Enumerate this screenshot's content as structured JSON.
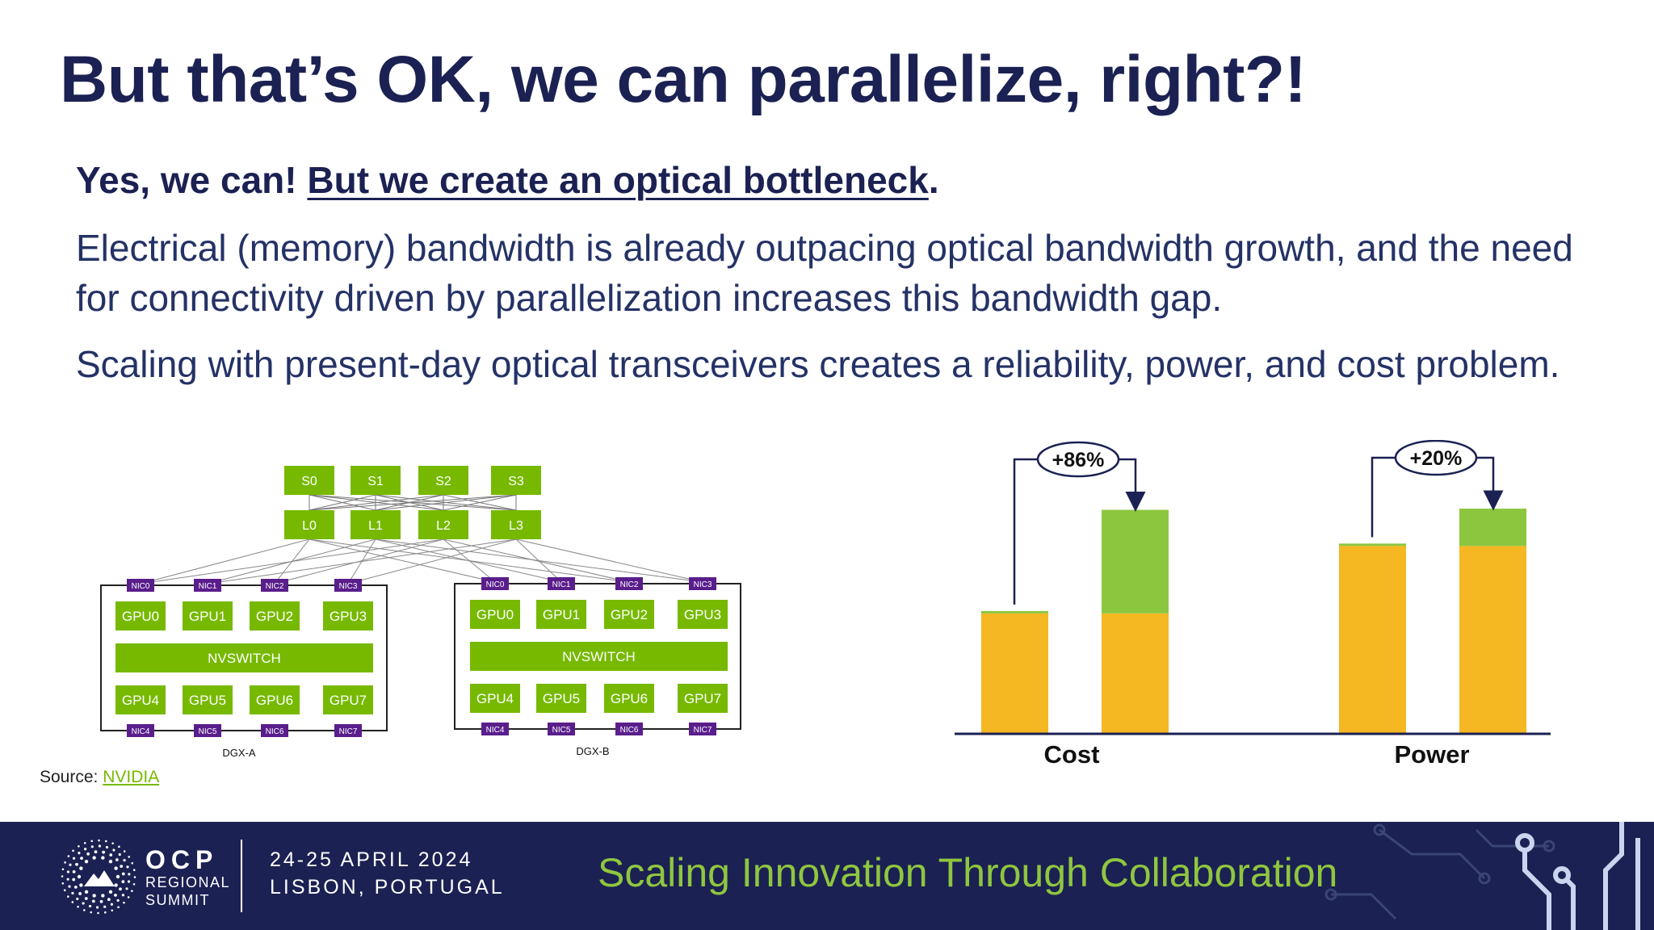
{
  "slide": {
    "title": "But that’s OK, we can parallelize, right?!",
    "lead_plain": "Yes, we can! ",
    "lead_underlined": "But we create an optical bottleneck",
    "lead_end": ".",
    "paragraph1": "Electrical (memory) bandwidth is already outpacing optical bandwidth growth, and the need for connectivity driven by parallelization increases this bandwidth gap.",
    "paragraph2": "Scaling with present-day optical transceivers creates a reliability, power, and cost problem.",
    "source_label": "Source: ",
    "source_link": "NVIDIA"
  },
  "diagram": {
    "spines": [
      "S0",
      "S1",
      "S2",
      "S3"
    ],
    "leaves": [
      "L0",
      "L1",
      "L2",
      "L3"
    ],
    "nodes": [
      {
        "label": "DGX-A",
        "nics_top": [
          "NIC0",
          "NIC1",
          "NIC2",
          "NIC3"
        ],
        "gpus_top": [
          "GPU0",
          "GPU1",
          "GPU2",
          "GPU3"
        ],
        "switch": "NVSWITCH",
        "gpus_bottom": [
          "GPU4",
          "GPU5",
          "GPU6",
          "GPU7"
        ],
        "nics_bottom": [
          "NIC4",
          "NIC5",
          "NIC6",
          "NIC7"
        ]
      },
      {
        "label": "DGX-B",
        "nics_top": [
          "NIC0",
          "NIC1",
          "NIC2",
          "NIC3"
        ],
        "gpus_top": [
          "GPU0",
          "GPU1",
          "GPU2",
          "GPU3"
        ],
        "switch": "NVSWITCH",
        "gpus_bottom": [
          "GPU4",
          "GPU5",
          "GPU6",
          "GPU7"
        ],
        "nics_bottom": [
          "NIC4",
          "NIC5",
          "NIC6",
          "NIC7"
        ]
      }
    ]
  },
  "chart_data": {
    "type": "bar",
    "stacked": true,
    "title": "",
    "xlabel": "",
    "ylabel": "",
    "ylim": [
      0,
      240
    ],
    "categories": [
      "Cost",
      "Power"
    ],
    "bars": [
      {
        "category": "Cost",
        "base": 100,
        "extra": 2
      },
      {
        "category": "Cost",
        "base": 100,
        "extra": 86
      },
      {
        "category": "Power",
        "base": 156,
        "extra": 2
      },
      {
        "category": "Power",
        "base": 156,
        "extra": 31
      }
    ],
    "annotations": [
      {
        "category": "Cost",
        "text": "+86%"
      },
      {
        "category": "Power",
        "text": "+20%"
      }
    ],
    "colors": {
      "base": "#f5b722",
      "extra": "#8cc63f",
      "axis": "#1b2152"
    }
  },
  "footer": {
    "logo_ocp": "OCP",
    "logo_regional": "REGIONAL",
    "logo_summit": "SUMMIT",
    "date": "24-25 APRIL 2024",
    "location": "LISBON, PORTUGAL",
    "slogan": "Scaling Innovation Through Collaboration",
    "colors": {
      "background": "#1b2152",
      "slogan": "#8fc63f"
    }
  }
}
